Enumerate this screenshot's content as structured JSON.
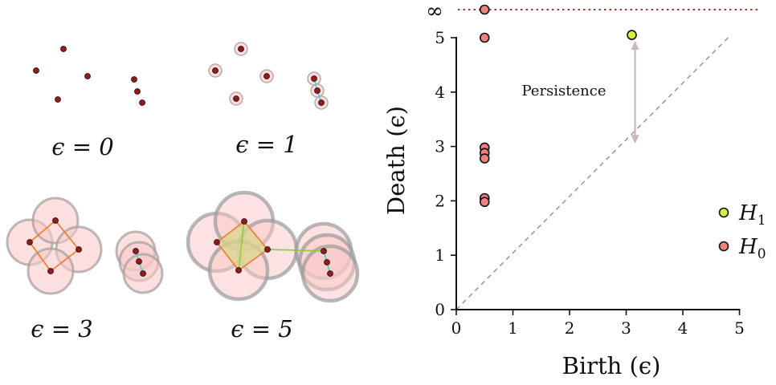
{
  "filtration_panels": [
    {
      "label": "ϵ = 0",
      "epsilon": 0
    },
    {
      "label": "ϵ = 1",
      "epsilon": 1
    },
    {
      "label": "ϵ = 3",
      "epsilon": 3
    },
    {
      "label": "ϵ = 5",
      "epsilon": 5
    }
  ],
  "colors": {
    "point": "#8b1f1f",
    "ball_fill": "#f9c6c6",
    "ball_stroke": "#9a9a9a",
    "square_edge": "#f07a28",
    "square_fill": "#d9d58c",
    "cyan_edge": "#40d0e0",
    "green_edge": "#8ccf3a",
    "h0": "#f08080",
    "h1": "#d6ef3a",
    "infinity_line": "#9b1c1c",
    "diagonal": "#9a9a9a",
    "arrow": "#c8b8b8"
  },
  "chart_data": {
    "type": "scatter",
    "xlabel": "Birth (ϵ)",
    "ylabel": "Death (ϵ)",
    "xlim": [
      0,
      5
    ],
    "ylim": [
      0,
      5
    ],
    "x_ticks": [
      "0",
      "1",
      "2",
      "3",
      "4",
      "5"
    ],
    "y_ticks": [
      "0",
      "1",
      "2",
      "3",
      "4",
      "5"
    ],
    "infinity_label": "∞",
    "diagonal": true,
    "annotation": {
      "text": "Persistence",
      "from": [
        3.1,
        5.0
      ],
      "to": [
        3.1,
        3.05
      ]
    },
    "series": [
      {
        "name": "H1",
        "sub": "1",
        "base": "H",
        "color": "#d6ef3a",
        "points": [
          [
            3.1,
            5.05
          ]
        ]
      },
      {
        "name": "H0",
        "sub": "0",
        "base": "H",
        "color": "#f08080",
        "points": [
          [
            0.5,
            "inf"
          ],
          [
            0.5,
            5.0
          ],
          [
            0.5,
            2.98
          ],
          [
            0.5,
            2.88
          ],
          [
            0.5,
            2.78
          ],
          [
            0.5,
            2.05
          ],
          [
            0.5,
            1.98
          ]
        ]
      }
    ],
    "legend_position": "right"
  }
}
